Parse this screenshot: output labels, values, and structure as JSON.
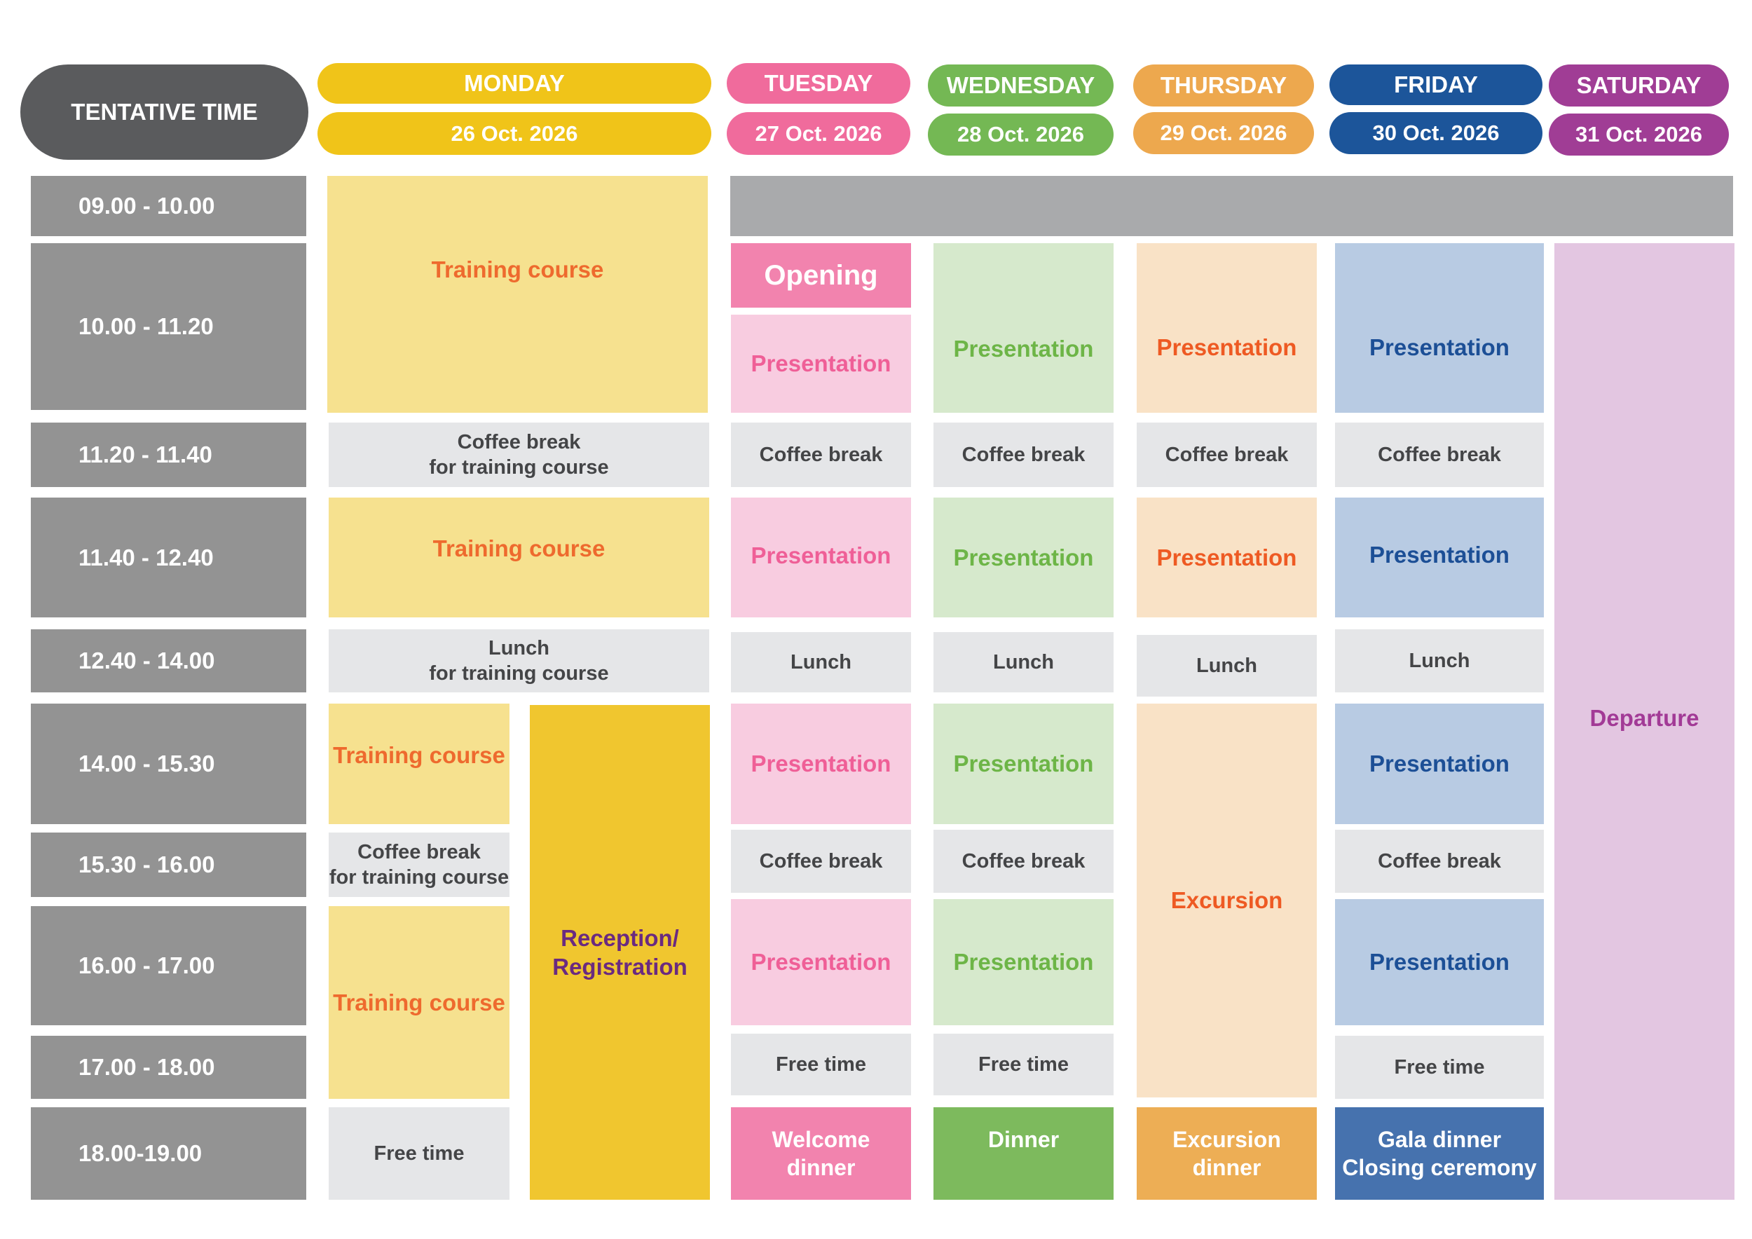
{
  "header": {
    "time_label": "TENTATIVE TIME",
    "days": [
      {
        "name": "MONDAY",
        "date": "26 Oct. 2026",
        "color": "#f0c419"
      },
      {
        "name": "TUESDAY",
        "date": "27 Oct. 2026",
        "color": "#f06b9c"
      },
      {
        "name": "WEDNESDAY",
        "date": "28 Oct. 2026",
        "color": "#74b854"
      },
      {
        "name": "THURSDAY",
        "date": "29 Oct. 2026",
        "color": "#eda84e"
      },
      {
        "name": "FRIDAY",
        "date": "30 Oct. 2026",
        "color": "#1c559a"
      },
      {
        "name": "SATURDAY",
        "date": "31 Oct. 2026",
        "color": "#a03d95"
      }
    ]
  },
  "times": [
    "09.00 - 10.00",
    "10.00 - 11.20",
    "11.20 - 11.40",
    "11.40 - 12.40",
    "12.40 - 14.00",
    "14.00 - 15.30",
    "15.30 - 16.00",
    "16.00 - 17.00",
    "17.00 - 18.00",
    "18.00-19.00"
  ],
  "monday": {
    "training_1": "Training course",
    "coffee_1": "Coffee break\nfor training course",
    "training_2": "Training course",
    "lunch": "Lunch\nfor training course",
    "training_3": "Training course",
    "coffee_2": "Coffee break\nfor training course",
    "training_4": "Training course",
    "free_time": "Free time",
    "reception": "Reception/\nRegistration"
  },
  "tuesday": {
    "opening": "Opening",
    "presentation_1": "Presentation",
    "coffee_1": "Coffee break",
    "presentation_2": "Presentation",
    "lunch": "Lunch",
    "presentation_3": "Presentation",
    "coffee_2": "Coffee break",
    "presentation_4": "Presentation",
    "free_time": "Free time",
    "dinner": "Welcome\ndinner"
  },
  "wednesday": {
    "presentation_1": "Presentation",
    "coffee_1": "Coffee break",
    "presentation_2": "Presentation",
    "lunch": "Lunch",
    "presentation_3": "Presentation",
    "coffee_2": "Coffee break",
    "presentation_4": "Presentation",
    "free_time": "Free time",
    "dinner": "Dinner"
  },
  "thursday": {
    "presentation_1": "Presentation",
    "coffee_1": "Coffee break",
    "presentation_2": "Presentation",
    "lunch": "Lunch",
    "excursion": "Excursion",
    "dinner": "Excursion\ndinner"
  },
  "friday": {
    "presentation_1": "Presentation",
    "coffee_1": "Coffee break",
    "presentation_2": "Presentation",
    "lunch": "Lunch",
    "presentation_3": "Presentation",
    "coffee_2": "Coffee break",
    "presentation_4": "Presentation",
    "free_time": "Free time",
    "dinner": "Gala dinner\nClosing ceremony"
  },
  "saturday": {
    "departure": "Departure"
  },
  "colors": {
    "time_gray": "#939393",
    "break_gray": "#e5e6e8",
    "monday_light": "#f6e18f",
    "monday_dark": "#f0c62f",
    "tuesday_light": "#f8cce0",
    "tuesday_dark": "#f283ae",
    "wednesday_light": "#d6e9cc",
    "wednesday_dark": "#7dba5d",
    "thursday_light": "#f9e2c6",
    "thursday_dark": "#edae55",
    "friday_light": "#b8cbe3",
    "friday_dark": "#4672ae",
    "saturday_light": "#e3c6e1"
  }
}
